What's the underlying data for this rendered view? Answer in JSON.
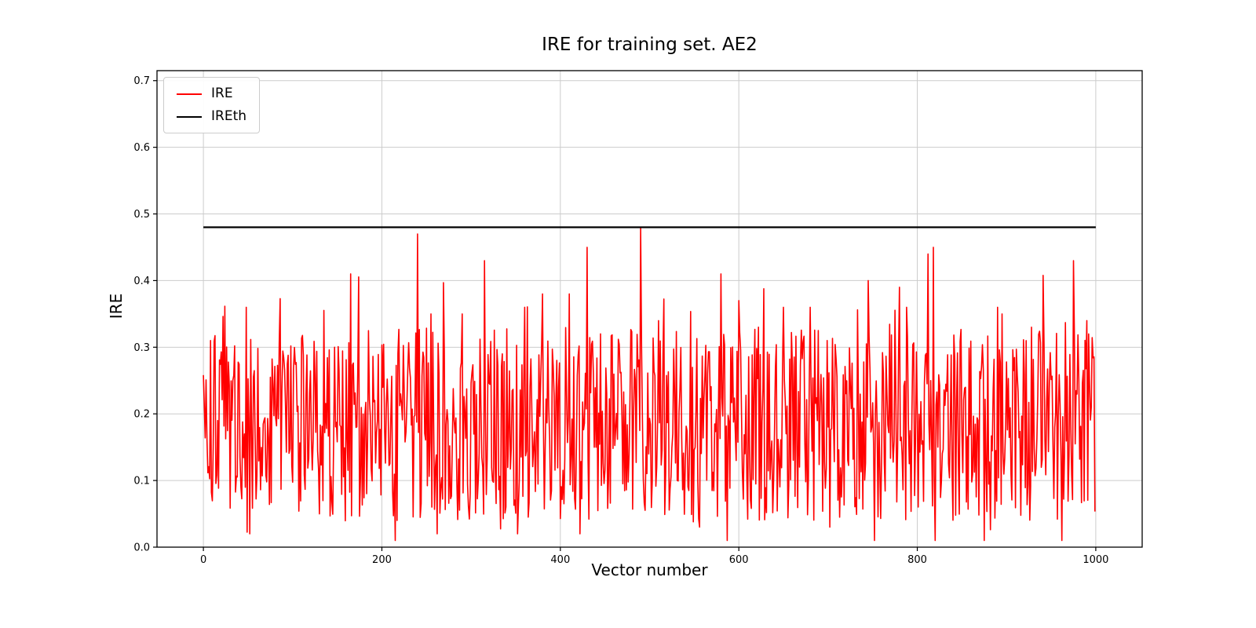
{
  "chart_data": {
    "type": "line",
    "title": "IRE for training set. AE2",
    "xlabel": "Vector number",
    "ylabel": "IRE",
    "xlim": [
      -52,
      1052
    ],
    "ylim": [
      0,
      0.715
    ],
    "grid": true,
    "background": "#ffffff",
    "grid_color": "#cccccc",
    "x_ticks": {
      "values": [
        0,
        200,
        400,
        600,
        800,
        1000
      ],
      "labels": [
        "0",
        "200",
        "400",
        "600",
        "800",
        "1000"
      ]
    },
    "y_ticks": {
      "values": [
        0,
        0.1,
        0.2,
        0.3,
        0.4,
        0.5,
        0.6,
        0.7
      ],
      "labels": [
        "0.0",
        "0.1",
        "0.2",
        "0.3",
        "0.4",
        "0.5",
        "0.6",
        "0.7"
      ]
    },
    "legend": {
      "position": "upper left",
      "entries": [
        {
          "label": "IRE",
          "color": "#ff0000"
        },
        {
          "label": "IREth",
          "color": "#000000"
        }
      ]
    },
    "series": [
      {
        "name": "IRE",
        "color": "#ff0000",
        "line_width": 1.6,
        "type": "noise",
        "generator": {
          "seed": 20,
          "n_points": 1000,
          "base_offset": 0.04,
          "base_span": 0.29,
          "high_spike_prob": 0.02,
          "high_spike_base": 0.3,
          "high_spike_span": 0.12,
          "low_dip_prob": 0.015,
          "low_dip_base": 0.01,
          "low_dip_span": 0.04,
          "clamp_min": 0.01,
          "clamp_max": 0.48
        },
        "forced_points": [
          {
            "x": 8,
            "y": 0.31
          },
          {
            "x": 48,
            "y": 0.36
          },
          {
            "x": 52,
            "y": 0.02
          },
          {
            "x": 130,
            "y": 0.05
          },
          {
            "x": 165,
            "y": 0.41
          },
          {
            "x": 215,
            "y": 0.01
          },
          {
            "x": 240,
            "y": 0.47
          },
          {
            "x": 255,
            "y": 0.35
          },
          {
            "x": 262,
            "y": 0.02
          },
          {
            "x": 290,
            "y": 0.35
          },
          {
            "x": 315,
            "y": 0.43
          },
          {
            "x": 352,
            "y": 0.02
          },
          {
            "x": 360,
            "y": 0.36
          },
          {
            "x": 380,
            "y": 0.38
          },
          {
            "x": 410,
            "y": 0.38
          },
          {
            "x": 422,
            "y": 0.02
          },
          {
            "x": 430,
            "y": 0.45
          },
          {
            "x": 445,
            "y": 0.32
          },
          {
            "x": 490,
            "y": 0.48
          },
          {
            "x": 510,
            "y": 0.34
          },
          {
            "x": 556,
            "y": 0.03
          },
          {
            "x": 580,
            "y": 0.41
          },
          {
            "x": 587,
            "y": 0.01
          },
          {
            "x": 600,
            "y": 0.37
          },
          {
            "x": 622,
            "y": 0.33
          },
          {
            "x": 650,
            "y": 0.36
          },
          {
            "x": 680,
            "y": 0.36
          },
          {
            "x": 702,
            "y": 0.03
          },
          {
            "x": 745,
            "y": 0.4
          },
          {
            "x": 752,
            "y": 0.01
          },
          {
            "x": 780,
            "y": 0.39
          },
          {
            "x": 812,
            "y": 0.44
          },
          {
            "x": 818,
            "y": 0.45
          },
          {
            "x": 820,
            "y": 0.01
          },
          {
            "x": 875,
            "y": 0.01
          },
          {
            "x": 890,
            "y": 0.36
          },
          {
            "x": 895,
            "y": 0.35
          },
          {
            "x": 928,
            "y": 0.33
          },
          {
            "x": 962,
            "y": 0.01
          },
          {
            "x": 975,
            "y": 0.43
          },
          {
            "x": 990,
            "y": 0.34
          }
        ]
      },
      {
        "name": "IREth",
        "color": "#000000",
        "line_width": 2.2,
        "type": "constant",
        "value": 0.48,
        "x_start": 0,
        "x_end": 1000
      }
    ]
  }
}
